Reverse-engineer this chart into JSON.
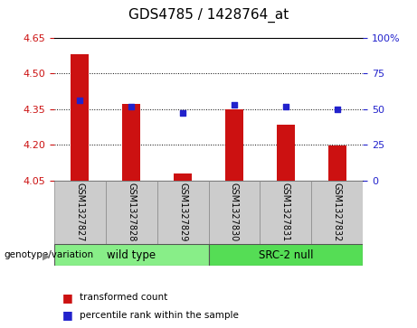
{
  "title": "GDS4785 / 1428764_at",
  "samples": [
    "GSM1327827",
    "GSM1327828",
    "GSM1327829",
    "GSM1327830",
    "GSM1327831",
    "GSM1327832"
  ],
  "red_values": [
    4.58,
    4.37,
    4.08,
    4.35,
    4.285,
    4.195
  ],
  "blue_values": [
    56,
    52,
    47,
    53,
    52,
    50
  ],
  "ylim_left": [
    4.05,
    4.65
  ],
  "ylim_right": [
    0,
    100
  ],
  "yticks_left": [
    4.05,
    4.2,
    4.35,
    4.5,
    4.65
  ],
  "yticks_right": [
    0,
    25,
    50,
    75,
    100
  ],
  "bar_color": "#CC1111",
  "dot_color": "#2222CC",
  "group1_label": "wild type",
  "group2_label": "SRC-2 null",
  "group1_color": "#88EE88",
  "group2_color": "#55DD55",
  "group_label_prefix": "genotype/variation",
  "legend_bar": "transformed count",
  "legend_dot": "percentile rank within the sample",
  "title_fontsize": 11,
  "axis_color_left": "#CC1111",
  "axis_color_right": "#2222CC",
  "bar_width": 0.35,
  "xlim": [
    -0.5,
    5.5
  ]
}
